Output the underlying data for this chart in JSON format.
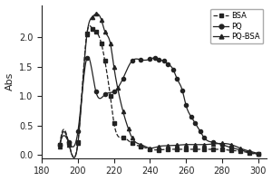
{
  "title": "",
  "xlabel": "",
  "ylabel": "Abs",
  "xlim": [
    180,
    305
  ],
  "ylim": [
    -0.05,
    2.55
  ],
  "yticks": [
    0.0,
    0.5,
    1.0,
    1.5,
    2.0
  ],
  "xticks": [
    180,
    200,
    220,
    240,
    260,
    280,
    300
  ],
  "background_color": "#ffffff",
  "series": {
    "BSA": {
      "x": [
        190,
        195,
        200,
        205,
        208,
        210,
        213,
        215,
        218,
        220,
        225,
        230,
        235,
        240,
        245,
        250,
        255,
        260,
        265,
        270,
        275,
        280,
        285,
        290,
        295,
        300
      ],
      "y": [
        0.18,
        0.2,
        0.22,
        2.07,
        2.15,
        2.1,
        1.9,
        1.6,
        1.0,
        0.55,
        0.3,
        0.2,
        0.15,
        0.1,
        0.09,
        0.1,
        0.1,
        0.1,
        0.1,
        0.1,
        0.1,
        0.1,
        0.08,
        0.07,
        0.04,
        0.02
      ],
      "marker": "s",
      "color": "#222222",
      "linestyle": "--"
    },
    "PQ": {
      "x": [
        190,
        195,
        200,
        205,
        210,
        215,
        220,
        225,
        230,
        235,
        240,
        243,
        245,
        248,
        250,
        253,
        255,
        258,
        260,
        263,
        265,
        268,
        270,
        275,
        280,
        285,
        290,
        295,
        300
      ],
      "y": [
        0.18,
        0.22,
        0.4,
        1.65,
        1.08,
        1.03,
        1.08,
        1.3,
        1.6,
        1.62,
        1.63,
        1.65,
        1.62,
        1.6,
        1.55,
        1.45,
        1.3,
        1.1,
        0.85,
        0.65,
        0.55,
        0.4,
        0.3,
        0.22,
        0.18,
        0.13,
        0.09,
        0.05,
        0.02
      ],
      "marker": "o",
      "color": "#222222",
      "linestyle": "-"
    },
    "PQ-BSA": {
      "x": [
        190,
        195,
        200,
        205,
        208,
        210,
        213,
        215,
        218,
        220,
        222,
        225,
        228,
        230,
        235,
        240,
        245,
        250,
        255,
        260,
        265,
        270,
        275,
        280,
        285,
        290,
        295,
        300
      ],
      "y": [
        0.15,
        0.18,
        0.2,
        2.05,
        2.35,
        2.4,
        2.3,
        2.1,
        1.9,
        1.5,
        1.15,
        0.75,
        0.45,
        0.3,
        0.18,
        0.12,
        0.15,
        0.16,
        0.17,
        0.18,
        0.18,
        0.18,
        0.19,
        0.2,
        0.18,
        0.12,
        0.07,
        0.03
      ],
      "marker": "^",
      "color": "#222222",
      "linestyle": "-"
    }
  },
  "legend_labels": [
    "BSA",
    "PQ",
    "PQ-BSA"
  ],
  "font_color": "#222222"
}
